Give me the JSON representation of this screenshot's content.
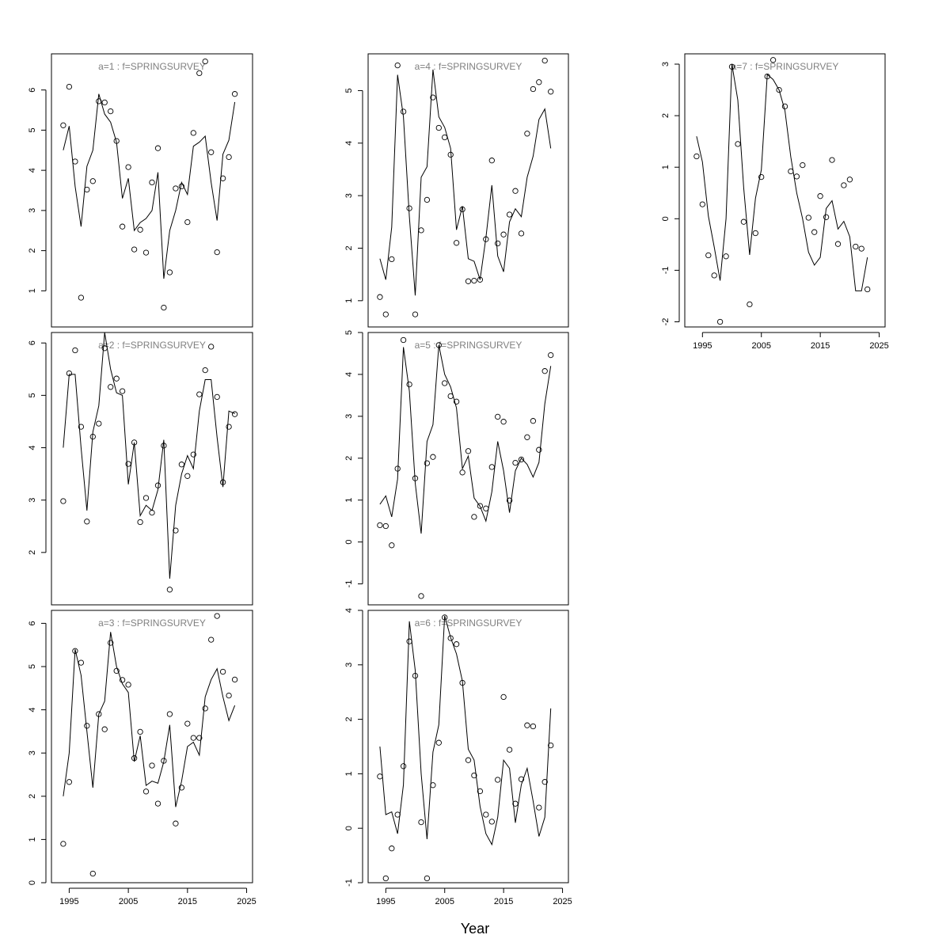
{
  "chart_data": {
    "type": "line",
    "xlabel": "Year",
    "x": [
      1994,
      1995,
      1996,
      1997,
      1998,
      1999,
      2000,
      2001,
      2002,
      2003,
      2004,
      2005,
      2006,
      2007,
      2008,
      2009,
      2010,
      2011,
      2012,
      2013,
      2014,
      2015,
      2016,
      2017,
      2018,
      2019,
      2020,
      2021,
      2022,
      2023
    ],
    "xlim": [
      1992,
      2026
    ],
    "xticks": [
      1995,
      2005,
      2015,
      2025
    ],
    "panels": [
      {
        "title": "a=1  :  f=SPRINGSURVEY",
        "ylim": [
          0.1,
          6.9
        ],
        "yticks": [
          1,
          2,
          3,
          4,
          5,
          6
        ],
        "observed": [
          5.12,
          6.08,
          4.22,
          0.83,
          3.52,
          3.73,
          5.72,
          5.69,
          5.47,
          4.73,
          2.6,
          4.08,
          2.03,
          2.52,
          1.95,
          3.7,
          4.55,
          0.58,
          1.46,
          3.55,
          3.6,
          2.71,
          4.93,
          6.42,
          6.71,
          4.45,
          1.96,
          3.8,
          4.33,
          5.9
        ],
        "fitted": [
          4.5,
          5.1,
          3.6,
          2.6,
          4.1,
          4.5,
          5.9,
          5.4,
          5.2,
          4.7,
          3.3,
          3.8,
          2.5,
          2.7,
          2.8,
          3.0,
          3.95,
          1.3,
          2.5,
          3.0,
          3.7,
          3.4,
          4.6,
          4.7,
          4.85,
          3.7,
          2.75,
          4.4,
          4.75,
          5.7
        ]
      },
      {
        "title": "a=2  :  f=SPRINGSURVEY",
        "ylim": [
          1.0,
          6.2
        ],
        "yticks": [
          2,
          3,
          4,
          5,
          6
        ],
        "observed": [
          2.98,
          5.42,
          5.86,
          4.4,
          2.59,
          4.21,
          4.46,
          5.9,
          5.16,
          5.32,
          5.08,
          3.69,
          4.1,
          2.58,
          3.04,
          2.76,
          3.28,
          4.04,
          1.29,
          2.42,
          3.68,
          3.46,
          3.87,
          5.02,
          5.48,
          5.93,
          4.97,
          3.34,
          4.4,
          4.64
        ],
        "fitted": [
          4.0,
          5.4,
          5.4,
          4.0,
          2.8,
          4.3,
          4.8,
          6.2,
          5.5,
          5.05,
          5.0,
          3.3,
          4.1,
          2.7,
          2.9,
          2.8,
          3.2,
          4.15,
          1.5,
          2.9,
          3.5,
          3.85,
          3.6,
          4.7,
          5.3,
          5.3,
          4.2,
          3.25,
          4.7,
          4.65
        ]
      },
      {
        "title": "a=3  :  f=SPRINGSURVEY",
        "ylim": [
          0.0,
          6.3
        ],
        "yticks": [
          0,
          1,
          2,
          3,
          4,
          5,
          6
        ],
        "observed": [
          0.9,
          2.33,
          5.36,
          5.09,
          3.63,
          0.21,
          3.9,
          3.55,
          5.55,
          4.9,
          4.69,
          4.58,
          2.88,
          3.49,
          2.11,
          2.71,
          1.83,
          2.82,
          3.9,
          1.37,
          2.2,
          3.68,
          3.35,
          3.35,
          4.03,
          5.62,
          6.17,
          4.88,
          4.33,
          4.7
        ],
        "fitted": [
          2.0,
          3.0,
          5.4,
          4.8,
          3.5,
          2.2,
          3.9,
          4.2,
          5.8,
          5.0,
          4.6,
          4.4,
          2.8,
          3.4,
          2.25,
          2.35,
          2.3,
          2.8,
          3.65,
          1.75,
          2.35,
          3.15,
          3.25,
          2.95,
          4.3,
          4.7,
          4.95,
          4.3,
          3.75,
          4.1
        ]
      },
      {
        "title": "a=4  :  f=SPRINGSURVEY",
        "ylim": [
          0.5,
          5.7
        ],
        "yticks": [
          1,
          2,
          3,
          4,
          5
        ],
        "observed": [
          1.07,
          0.74,
          1.79,
          5.48,
          4.6,
          2.76,
          0.74,
          2.34,
          2.92,
          4.87,
          4.29,
          4.11,
          3.78,
          2.1,
          2.74,
          1.37,
          1.38,
          1.4,
          2.17,
          3.67,
          2.09,
          2.26,
          2.64,
          3.09,
          2.28,
          4.18,
          5.03,
          5.16,
          5.57,
          4.98
        ],
        "fitted": [
          1.8,
          1.4,
          2.4,
          5.3,
          4.5,
          2.6,
          1.1,
          3.35,
          3.55,
          5.4,
          4.5,
          4.3,
          3.9,
          2.35,
          2.8,
          1.8,
          1.75,
          1.4,
          2.2,
          3.2,
          1.85,
          1.55,
          2.5,
          2.75,
          2.6,
          3.35,
          3.75,
          4.45,
          4.65,
          3.9
        ]
      },
      {
        "title": "a=5  :  f=SPRINGSURVEY",
        "ylim": [
          -1.5,
          5.0
        ],
        "yticks": [
          -1,
          0,
          1,
          2,
          3,
          4,
          5
        ],
        "observed": [
          0.4,
          0.38,
          -0.08,
          1.75,
          4.82,
          3.76,
          1.52,
          -1.29,
          1.88,
          2.03,
          4.7,
          3.79,
          3.48,
          3.35,
          1.66,
          2.17,
          0.6,
          0.86,
          0.8,
          1.79,
          2.99,
          2.87,
          0.99,
          1.89,
          1.97,
          2.5,
          2.89,
          2.2,
          4.08,
          4.46
        ],
        "fitted": [
          0.9,
          1.1,
          0.6,
          1.5,
          4.65,
          3.6,
          1.4,
          0.2,
          2.4,
          2.8,
          4.7,
          4.0,
          3.7,
          3.2,
          1.75,
          2.05,
          1.05,
          0.85,
          0.5,
          1.2,
          2.4,
          1.7,
          0.7,
          1.7,
          2.0,
          1.85,
          1.55,
          1.9,
          3.3,
          4.2
        ]
      },
      {
        "title": "a=6  :  f=SPRINGSURVEY",
        "ylim": [
          -1.0,
          4.0
        ],
        "yticks": [
          -1,
          0,
          1,
          2,
          3,
          4
        ],
        "observed": [
          0.95,
          -0.92,
          -0.37,
          0.25,
          1.14,
          3.43,
          2.8,
          0.11,
          -0.92,
          0.79,
          1.57,
          3.87,
          3.49,
          3.38,
          2.67,
          1.25,
          0.97,
          0.68,
          0.25,
          0.12,
          0.89,
          2.41,
          1.44,
          0.45,
          0.9,
          1.89,
          1.87,
          0.38,
          0.85,
          1.52
        ],
        "fitted": [
          1.5,
          0.25,
          0.3,
          -0.1,
          0.8,
          3.8,
          2.9,
          1.0,
          -0.2,
          1.4,
          1.9,
          3.9,
          3.5,
          3.2,
          2.7,
          1.45,
          1.25,
          0.4,
          -0.1,
          -0.3,
          0.2,
          1.25,
          1.1,
          0.1,
          0.8,
          1.1,
          0.5,
          -0.15,
          0.2,
          2.2
        ]
      },
      {
        "title": "a=7  :  f=SPRINGSURVEY",
        "ylim": [
          -2.1,
          3.2
        ],
        "yticks": [
          -2,
          -1,
          0,
          1,
          2,
          3
        ],
        "observed": [
          1.21,
          0.28,
          -0.71,
          -1.1,
          -2.0,
          -0.73,
          2.95,
          1.45,
          -0.06,
          -1.66,
          -0.28,
          0.81,
          2.76,
          3.08,
          2.5,
          2.18,
          0.92,
          0.82,
          1.04,
          0.02,
          -0.26,
          0.44,
          0.03,
          1.14,
          -0.49,
          0.65,
          0.76,
          -0.54,
          -0.58,
          -1.37
        ],
        "fitted": [
          1.6,
          1.1,
          0.05,
          -0.55,
          -1.2,
          0.0,
          3.0,
          2.3,
          0.6,
          -0.7,
          0.4,
          0.95,
          2.8,
          2.7,
          2.5,
          2.1,
          1.2,
          0.5,
          0.0,
          -0.65,
          -0.9,
          -0.75,
          0.2,
          0.35,
          -0.2,
          -0.05,
          -0.35,
          -1.4,
          -1.4,
          -0.75
        ]
      }
    ]
  }
}
